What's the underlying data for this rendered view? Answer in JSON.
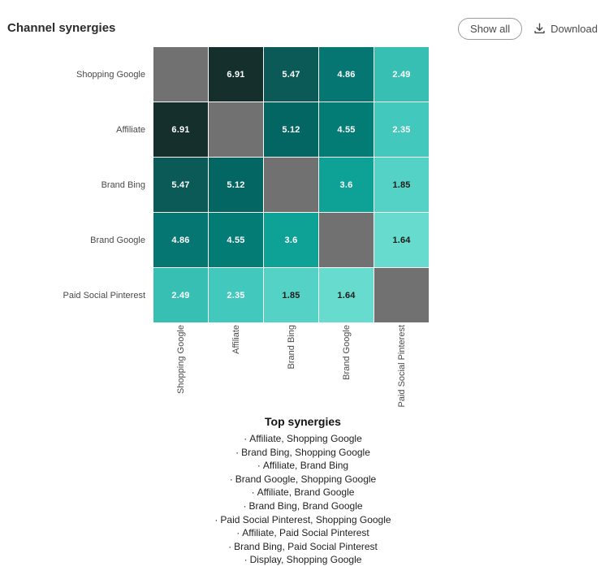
{
  "header": {
    "title": "Channel synergies",
    "show_all_label": "Show all",
    "download_label": "Download"
  },
  "chart_data": {
    "type": "heatmap",
    "title": "Channel synergies",
    "x_categories": [
      "Shopping Google",
      "Affiliate",
      "Brand Bing",
      "Brand Google",
      "Paid Social Pinterest"
    ],
    "y_categories": [
      "Shopping Google",
      "Affiliate",
      "Brand Bing",
      "Brand Google",
      "Paid Social Pinterest"
    ],
    "values": [
      [
        null,
        6.91,
        5.47,
        4.86,
        2.49
      ],
      [
        6.91,
        null,
        5.12,
        4.55,
        2.35
      ],
      [
        5.47,
        5.12,
        null,
        3.6,
        1.85
      ],
      [
        4.86,
        4.55,
        3.6,
        null,
        1.64
      ],
      [
        2.49,
        2.35,
        1.85,
        1.64,
        null
      ]
    ],
    "color_scale_low_to_high": [
      "#66dbce",
      "#142f2c"
    ],
    "diagonal_color": "#717171",
    "legend": "none",
    "annotations": "cell values printed inside cells"
  },
  "heatmap": {
    "labels": [
      "Shopping Google",
      "Affiliate",
      "Brand Bing",
      "Brand Google",
      "Paid Social Pinterest"
    ],
    "matrix": [
      [
        null,
        "6.91",
        "5.47",
        "4.86",
        "2.49"
      ],
      [
        "6.91",
        null,
        "5.12",
        "4.55",
        "2.35"
      ],
      [
        "5.47",
        "5.12",
        null,
        "3.6",
        "1.85"
      ],
      [
        "4.86",
        "4.55",
        "3.6",
        null,
        "1.64"
      ],
      [
        "2.49",
        "2.35",
        "1.85",
        "1.64",
        null
      ]
    ],
    "value_colors": {
      "6.91": "#142f2c",
      "5.47": "#0b5a57",
      "5.12": "#046663",
      "4.86": "#057671",
      "4.55": "#047c76",
      "3.6": "#0ea296",
      "2.49": "#38bfb4",
      "2.35": "#42c8bc",
      "1.85": "#55d2c6",
      "1.64": "#66dbce"
    },
    "diagonal_color": "#717171",
    "dark_text_values": [
      "1.85",
      "1.64"
    ],
    "light_text_color": "#ffffff",
    "dark_text_color": "#1a1a1a"
  },
  "top_synergies": {
    "title": "Top synergies",
    "bullet": "·",
    "items": [
      "Affiliate, Shopping Google",
      "Brand Bing, Shopping Google",
      "Affiliate, Brand Bing",
      "Brand Google, Shopping Google",
      "Affiliate, Brand Google",
      "Brand Bing, Brand Google",
      "Paid Social Pinterest, Shopping Google",
      "Affiliate, Paid Social Pinterest",
      "Brand Bing, Paid Social Pinterest",
      "Display, Shopping Google"
    ]
  }
}
